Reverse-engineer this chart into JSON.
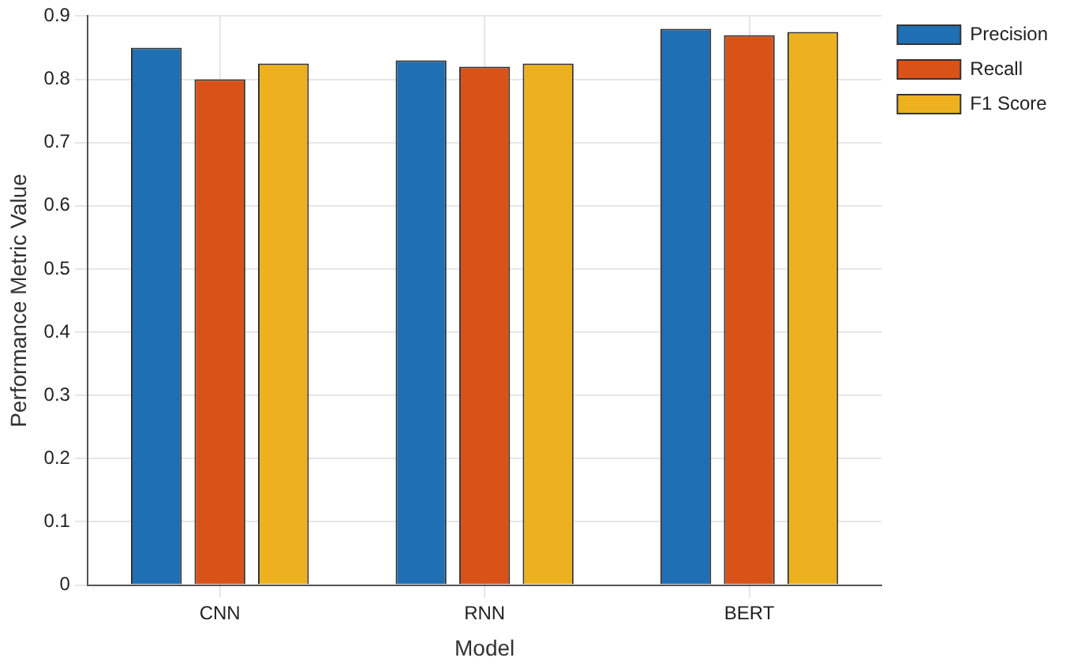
{
  "chart_data": {
    "type": "bar",
    "xlabel": "Model",
    "ylabel": "Performance Metric Value",
    "categories": [
      "CNN",
      "RNN",
      "BERT"
    ],
    "series": [
      {
        "name": "Precision",
        "color": "#1f6fb4",
        "values": [
          0.85,
          0.83,
          0.88
        ]
      },
      {
        "name": "Recall",
        "color": "#d95319",
        "values": [
          0.8,
          0.82,
          0.87
        ]
      },
      {
        "name": "F1 Score",
        "color": "#edb120",
        "values": [
          0.825,
          0.825,
          0.875
        ]
      }
    ],
    "ylim": [
      0,
      0.9
    ],
    "yticks": [
      0,
      0.1,
      0.2,
      0.3,
      0.4,
      0.5,
      0.6,
      0.7,
      0.8,
      0.9
    ],
    "grid": true,
    "legend": "top right"
  }
}
